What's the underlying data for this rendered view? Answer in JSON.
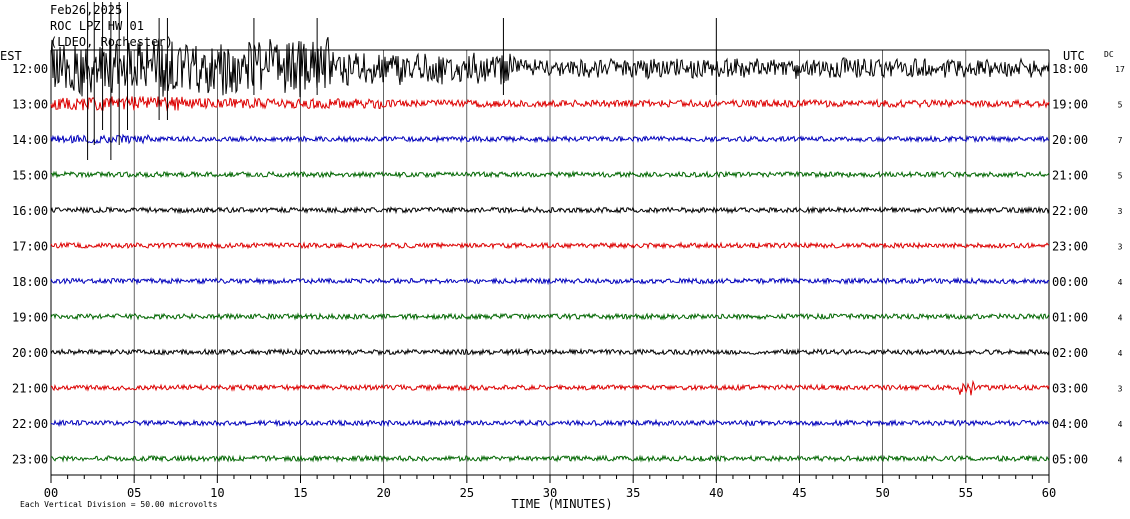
{
  "header": {
    "date": "Feb26,2025",
    "station": "ROC LPZ HW 01",
    "network": "(LDEO, Rochester)"
  },
  "labels": {
    "left_zone": "EST",
    "right_zone": "UTC",
    "dc_label": "DC",
    "xlabel": "TIME (MINUTES)",
    "scale_note": "Each Vertical Division =   50.00 microvolts"
  },
  "colors": {
    "cycle": [
      "#000000",
      "#dd0000",
      "#0000bb",
      "#006600"
    ],
    "grid": "#000000"
  },
  "chart_data": {
    "type": "line",
    "title": "Feb26,2025",
    "xlabel": "TIME (MINUTES)",
    "xlim": [
      0,
      60
    ],
    "x_ticks": [
      "00",
      "05",
      "10",
      "15",
      "20",
      "25",
      "30",
      "35",
      "40",
      "45",
      "50",
      "55",
      "60"
    ],
    "grid": true,
    "rows": [
      {
        "est": "12:00",
        "utc": "18:00",
        "dc": "17"
      },
      {
        "est": "13:00",
        "utc": "19:00",
        "dc": "5"
      },
      {
        "est": "14:00",
        "utc": "20:00",
        "dc": "7"
      },
      {
        "est": "15:00",
        "utc": "21:00",
        "dc": "5"
      },
      {
        "est": "16:00",
        "utc": "22:00",
        "dc": "3"
      },
      {
        "est": "17:00",
        "utc": "23:00",
        "dc": "3"
      },
      {
        "est": "18:00",
        "utc": "00:00",
        "dc": "4"
      },
      {
        "est": "19:00",
        "utc": "01:00",
        "dc": "4"
      },
      {
        "est": "20:00",
        "utc": "02:00",
        "dc": "4"
      },
      {
        "est": "21:00",
        "utc": "03:00",
        "dc": "3"
      },
      {
        "est": "22:00",
        "utc": "04:00",
        "dc": "4"
      },
      {
        "est": "23:00",
        "utc": "05:00",
        "dc": "4"
      }
    ]
  }
}
